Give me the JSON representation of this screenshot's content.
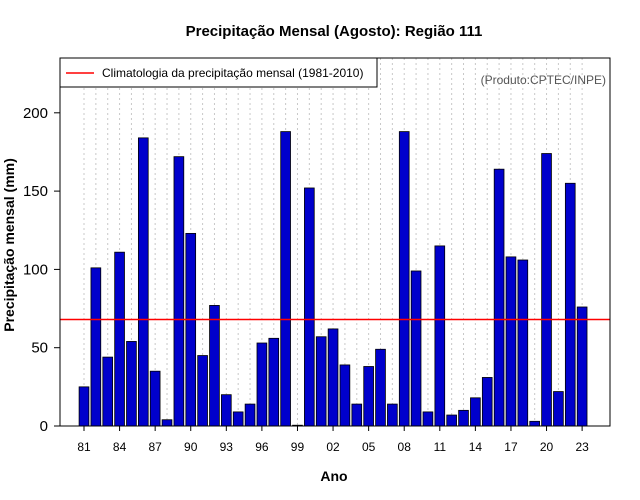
{
  "chart_data": {
    "type": "bar",
    "title": "Precipitação Mensal (Agosto): Região 111",
    "xlabel": "Ano",
    "ylabel": "Precipitação mensal (mm)",
    "ylim": [
      0,
      235
    ],
    "yticks": [
      0,
      50,
      100,
      150,
      200
    ],
    "x_tick_labels": [
      "81",
      "84",
      "87",
      "90",
      "93",
      "96",
      "99",
      "02",
      "05",
      "08",
      "11",
      "14",
      "17",
      "20",
      "23"
    ],
    "x_tick_years": [
      1981,
      1984,
      1987,
      1990,
      1993,
      1996,
      1999,
      2002,
      2005,
      2008,
      2011,
      2014,
      2017,
      2020,
      2023
    ],
    "categories": [
      1981,
      1982,
      1983,
      1984,
      1985,
      1986,
      1987,
      1988,
      1989,
      1990,
      1991,
      1992,
      1993,
      1994,
      1995,
      1996,
      1997,
      1998,
      1999,
      2000,
      2001,
      2002,
      2003,
      2004,
      2005,
      2006,
      2007,
      2008,
      2009,
      2010,
      2011,
      2012,
      2013,
      2014,
      2015,
      2016,
      2017,
      2018,
      2019,
      2020,
      2021,
      2022,
      2023
    ],
    "values": [
      25,
      101,
      44,
      111,
      54,
      184,
      35,
      4,
      172,
      123,
      45,
      77,
      20,
      9,
      14,
      53,
      56,
      188,
      0.5,
      152,
      57,
      62,
      39,
      14,
      38,
      49,
      14,
      188,
      99,
      9,
      115,
      7,
      10,
      18,
      31,
      164,
      108,
      106,
      3,
      174,
      22,
      155,
      76
    ],
    "series_name": "Precipitação mensal",
    "bar_color": "#0000cc",
    "climatology": {
      "label": "Climatologia da precipitação mensal (1981-2010)",
      "value": 68,
      "color": "#ff0000"
    },
    "grid": "vertical dotted",
    "legend_position": "top-left",
    "credit": "(Produto:CPTEC/INPE)"
  }
}
